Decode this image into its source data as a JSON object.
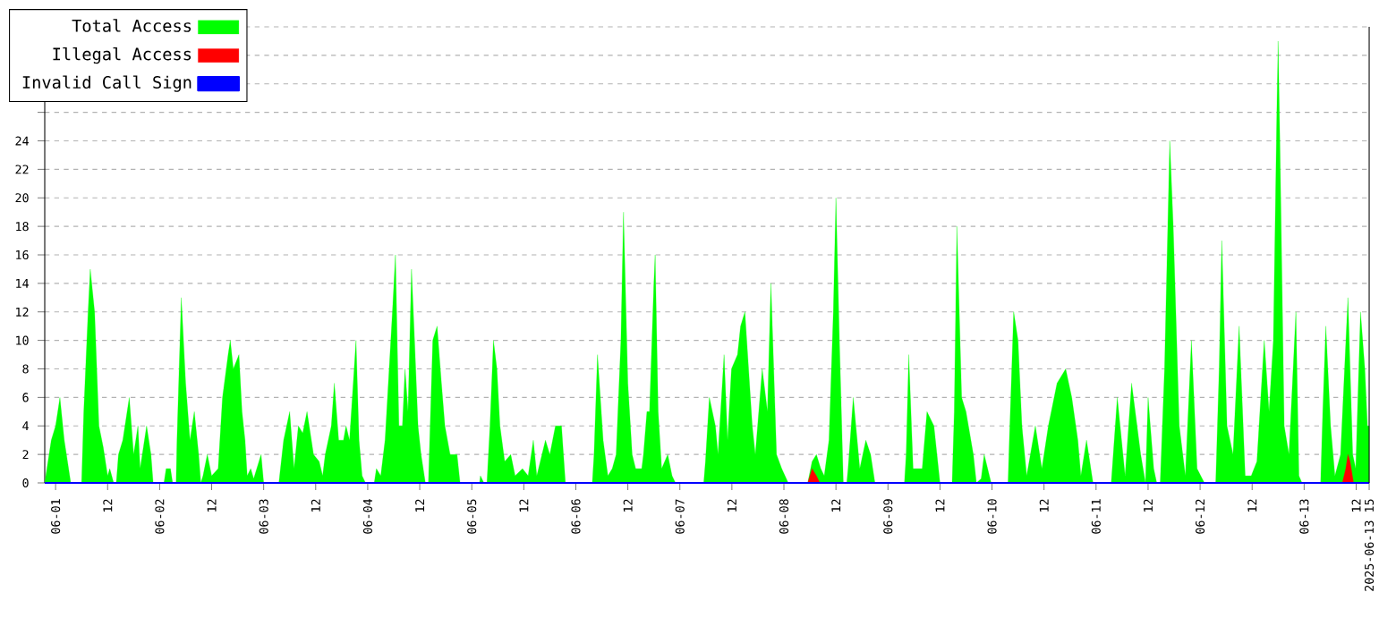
{
  "chart_data": {
    "type": "area",
    "xlim": [
      "2025-05-31T21:30",
      "2025-06-13T15:00"
    ],
    "ylim": [
      0,
      32
    ],
    "grid": "y",
    "legend": "top left",
    "xticks": [
      {
        "value": "2025-06-01T00:00",
        "label": "06-01"
      },
      {
        "value": "2025-06-01T12:00",
        "label": "12"
      },
      {
        "value": "2025-06-02T00:00",
        "label": "06-02"
      },
      {
        "value": "2025-06-02T12:00",
        "label": "12"
      },
      {
        "value": "2025-06-03T00:00",
        "label": "06-03"
      },
      {
        "value": "2025-06-03T12:00",
        "label": "12"
      },
      {
        "value": "2025-06-04T00:00",
        "label": "06-04"
      },
      {
        "value": "2025-06-04T12:00",
        "label": "12"
      },
      {
        "value": "2025-06-05T00:00",
        "label": "06-05"
      },
      {
        "value": "2025-06-05T12:00",
        "label": "12"
      },
      {
        "value": "2025-06-06T00:00",
        "label": "06-06"
      },
      {
        "value": "2025-06-06T12:00",
        "label": "12"
      },
      {
        "value": "2025-06-07T00:00",
        "label": "06-07"
      },
      {
        "value": "2025-06-07T12:00",
        "label": "12"
      },
      {
        "value": "2025-06-08T00:00",
        "label": "06-08"
      },
      {
        "value": "2025-06-08T12:00",
        "label": "12"
      },
      {
        "value": "2025-06-09T00:00",
        "label": "06-09"
      },
      {
        "value": "2025-06-09T12:00",
        "label": "12"
      },
      {
        "value": "2025-06-10T00:00",
        "label": "06-10"
      },
      {
        "value": "2025-06-10T12:00",
        "label": "12"
      },
      {
        "value": "2025-06-11T00:00",
        "label": "06-11"
      },
      {
        "value": "2025-06-11T12:00",
        "label": "12"
      },
      {
        "value": "2025-06-12T00:00",
        "label": "06-12"
      },
      {
        "value": "2025-06-12T12:00",
        "label": "12"
      },
      {
        "value": "2025-06-13T00:00",
        "label": "06-13"
      },
      {
        "value": "2025-06-13T12:00",
        "label": "12"
      },
      {
        "value": "2025-06-13T15:00",
        "label": "2025-06-13 15"
      }
    ],
    "yticks": [
      0,
      2,
      4,
      6,
      8,
      10,
      12,
      14,
      16,
      18,
      20,
      22,
      24,
      {
        "value": 26,
        "label": null
      },
      {
        "value": 28,
        "label": null
      },
      {
        "value": 30,
        "label": null
      },
      {
        "value": 32,
        "label": null
      }
    ],
    "series": [
      {
        "name": "Total Access",
        "color": "#00ff00",
        "x": [
          "2025-05-31T21:30",
          "2025-05-31T22:00",
          "2025-05-31T23:00",
          "2025-06-01T00:00",
          "2025-06-01T01:00",
          "2025-06-01T02:00",
          "2025-06-01T03:00",
          "2025-06-01T03:30",
          "2025-06-01T06:00",
          "2025-06-01T06:30",
          "2025-06-01T07:30",
          "2025-06-01T08:00",
          "2025-06-01T09:00",
          "2025-06-01T10:00",
          "2025-06-01T11:00",
          "2025-06-01T12:00",
          "2025-06-01T12:30",
          "2025-06-01T13:24",
          "2025-06-01T14:00",
          "2025-06-01T14:30",
          "2025-06-01T15:30",
          "2025-06-01T17:00",
          "2025-06-01T18:00",
          "2025-06-01T19:00",
          "2025-06-01T19:30",
          "2025-06-01T21:00",
          "2025-06-01T22:00",
          "2025-06-01T22:30",
          "2025-06-02T01:00",
          "2025-06-02T01:30",
          "2025-06-02T02:30",
          "2025-06-02T03:00",
          "2025-06-02T03:48",
          "2025-06-02T04:00",
          "2025-06-02T05:00",
          "2025-06-02T06:00",
          "2025-06-02T07:00",
          "2025-06-02T08:00",
          "2025-06-02T09:00",
          "2025-06-02T09:30",
          "2025-06-02T10:00",
          "2025-06-02T11:00",
          "2025-06-02T12:00",
          "2025-06-02T13:30",
          "2025-06-02T14:30",
          "2025-06-02T15:48",
          "2025-06-02T16:18",
          "2025-06-02T17:00",
          "2025-06-02T18:18",
          "2025-06-02T19:00",
          "2025-06-02T19:42",
          "2025-06-02T20:12",
          "2025-06-02T21:00",
          "2025-06-02T21:42",
          "2025-06-02T23:24",
          "2025-06-03T00:00",
          "2025-06-03T03:30",
          "2025-06-03T04:36",
          "2025-06-03T06:00",
          "2025-06-03T07:00",
          "2025-06-03T08:00",
          "2025-06-03T09:00",
          "2025-06-03T10:00",
          "2025-06-03T11:30",
          "2025-06-03T12:48",
          "2025-06-03T13:36",
          "2025-06-03T14:12",
          "2025-06-03T15:36",
          "2025-06-03T16:18",
          "2025-06-03T17:18",
          "2025-06-03T18:24",
          "2025-06-03T19:00",
          "2025-06-03T19:48",
          "2025-06-03T21:18",
          "2025-06-03T22:00",
          "2025-06-03T22:42",
          "2025-06-03T23:30",
          "2025-06-04T01:30",
          "2025-06-04T02:00",
          "2025-06-04T03:00",
          "2025-06-04T04:00",
          "2025-06-04T05:42",
          "2025-06-04T06:24",
          "2025-06-04T07:12",
          "2025-06-04T08:00",
          "2025-06-04T08:36",
          "2025-06-04T09:18",
          "2025-06-04T10:06",
          "2025-06-04T10:48",
          "2025-06-04T11:36",
          "2025-06-04T12:18",
          "2025-06-04T13:18",
          "2025-06-04T14:00",
          "2025-06-04T15:00",
          "2025-06-04T16:00",
          "2025-06-04T17:00",
          "2025-06-04T17:48",
          "2025-06-04T19:00",
          "2025-06-04T20:36",
          "2025-06-04T21:18",
          "2025-06-05T01:48",
          "2025-06-05T02:00",
          "2025-06-05T02:48",
          "2025-06-05T03:30",
          "2025-06-05T04:12",
          "2025-06-05T05:00",
          "2025-06-05T05:48",
          "2025-06-05T06:30",
          "2025-06-05T07:36",
          "2025-06-05T09:00",
          "2025-06-05T10:00",
          "2025-06-05T11:42",
          "2025-06-05T13:00",
          "2025-06-05T14:12",
          "2025-06-05T15:00",
          "2025-06-05T17:00",
          "2025-06-05T18:00",
          "2025-06-05T19:18",
          "2025-06-05T20:42",
          "2025-06-05T21:36",
          "2025-06-06T03:48",
          "2025-06-06T04:12",
          "2025-06-06T05:00",
          "2025-06-06T06:18",
          "2025-06-06T07:24",
          "2025-06-06T08:24",
          "2025-06-06T09:18",
          "2025-06-06T10:24",
          "2025-06-06T11:00",
          "2025-06-06T12:00",
          "2025-06-06T13:00",
          "2025-06-06T13:48",
          "2025-06-06T15:12",
          "2025-06-06T15:36",
          "2025-06-06T16:24",
          "2025-06-06T17:00",
          "2025-06-06T18:00",
          "2025-06-06T18:18",
          "2025-06-06T19:00",
          "2025-06-06T19:48",
          "2025-06-06T21:12",
          "2025-06-06T22:12",
          "2025-06-06T23:00",
          "2025-06-07T05:30",
          "2025-06-07T05:54",
          "2025-06-07T06:48",
          "2025-06-07T08:12",
          "2025-06-07T08:48",
          "2025-06-07T09:36",
          "2025-06-07T10:12",
          "2025-06-07T11:00",
          "2025-06-07T11:54",
          "2025-06-07T13:18",
          "2025-06-07T14:00",
          "2025-06-07T15:00",
          "2025-06-07T16:42",
          "2025-06-07T17:24",
          "2025-06-07T19:00",
          "2025-06-07T20:12",
          "2025-06-07T21:00",
          "2025-06-07T22:18",
          "2025-06-07T23:30",
          "2025-06-08T01:00",
          "2025-06-08T05:30",
          "2025-06-08T06:30",
          "2025-06-08T07:30",
          "2025-06-08T08:30",
          "2025-06-08T09:18",
          "2025-06-08T10:24",
          "2025-06-08T11:24",
          "2025-06-08T12:00",
          "2025-06-08T12:48",
          "2025-06-08T13:42",
          "2025-06-08T14:30",
          "2025-06-08T14:48",
          "2025-06-08T16:00",
          "2025-06-08T17:30",
          "2025-06-08T18:54",
          "2025-06-08T20:00",
          "2025-06-08T21:00",
          "2025-06-09T03:48",
          "2025-06-09T04:12",
          "2025-06-09T04:48",
          "2025-06-09T05:48",
          "2025-06-09T07:54",
          "2025-06-09T09:00",
          "2025-06-09T10:36",
          "2025-06-09T12:00",
          "2025-06-09T14:48",
          "2025-06-09T15:18",
          "2025-06-09T15:54",
          "2025-06-09T17:00",
          "2025-06-09T18:00",
          "2025-06-09T19:42",
          "2025-06-09T20:24",
          "2025-06-09T21:30",
          "2025-06-09T22:12",
          "2025-06-09T23:48",
          "2025-06-10T03:42",
          "2025-06-10T04:00",
          "2025-06-10T05:00",
          "2025-06-10T06:00",
          "2025-06-10T06:54",
          "2025-06-10T08:00",
          "2025-06-10T10:00",
          "2025-06-10T11:30",
          "2025-06-10T13:00",
          "2025-06-10T15:00",
          "2025-06-10T17:00",
          "2025-06-10T18:24",
          "2025-06-10T19:48",
          "2025-06-10T20:30",
          "2025-06-10T21:48",
          "2025-06-10T23:18",
          "2025-06-11T03:30",
          "2025-06-11T04:54",
          "2025-06-11T06:42",
          "2025-06-11T08:12",
          "2025-06-11T10:18",
          "2025-06-11T11:24",
          "2025-06-11T12:00",
          "2025-06-11T13:18",
          "2025-06-11T14:00",
          "2025-06-11T14:48",
          "2025-06-11T15:48",
          "2025-06-11T17:00",
          "2025-06-11T17:48",
          "2025-06-11T19:12",
          "2025-06-11T20:36",
          "2025-06-11T22:00",
          "2025-06-11T23:18",
          "2025-06-12T01:00",
          "2025-06-12T03:36",
          "2025-06-12T04:24",
          "2025-06-12T05:00",
          "2025-06-12T06:12",
          "2025-06-12T07:36",
          "2025-06-12T09:00",
          "2025-06-12T10:24",
          "2025-06-12T11:48",
          "2025-06-12T13:06",
          "2025-06-12T14:48",
          "2025-06-12T15:54",
          "2025-06-12T16:54",
          "2025-06-12T17:42",
          "2025-06-12T18:00",
          "2025-06-12T18:24",
          "2025-06-12T19:24",
          "2025-06-12T20:30",
          "2025-06-12T22:06",
          "2025-06-12T22:48",
          "2025-06-12T23:30",
          "2025-06-13T03:48",
          "2025-06-13T04:18",
          "2025-06-13T05:00",
          "2025-06-13T06:06",
          "2025-06-13T07:06",
          "2025-06-13T08:24",
          "2025-06-13T10:06",
          "2025-06-13T11:12",
          "2025-06-13T11:54",
          "2025-06-13T13:00",
          "2025-06-13T14:00",
          "2025-06-13T14:36",
          "2025-06-13T15:00"
        ],
        "values": [
          0,
          1,
          3,
          4,
          6,
          3,
          1,
          0,
          0,
          5,
          12,
          15,
          12,
          4,
          2.5,
          0.5,
          1,
          0,
          0,
          2,
          3,
          6,
          2,
          4,
          1,
          4,
          2,
          0,
          0,
          1,
          1,
          0,
          0,
          3,
          13,
          7,
          3,
          5,
          2,
          0,
          0.5,
          2,
          0.5,
          1,
          6,
          9,
          10,
          8,
          9,
          5,
          3,
          0.5,
          1,
          0.3,
          2,
          0,
          0,
          3,
          5,
          1,
          4,
          3.5,
          5,
          2,
          1.5,
          0.5,
          2,
          4,
          7,
          3,
          3,
          4,
          3,
          10,
          3,
          0.5,
          0,
          0,
          1,
          0.5,
          3,
          12,
          16,
          4,
          4,
          8,
          5,
          15,
          10,
          4,
          2,
          0,
          0,
          10,
          11,
          7,
          4,
          2,
          2,
          0,
          0,
          0.5,
          0,
          0,
          4,
          10,
          8,
          4,
          1.5,
          2,
          0.5,
          1,
          0.5,
          3,
          0.5,
          3,
          2,
          4,
          4,
          0,
          0,
          2,
          9,
          3,
          0.5,
          1,
          2,
          10,
          19,
          7,
          2,
          1,
          1,
          2,
          5,
          5,
          14,
          16,
          5,
          1,
          2,
          0.5,
          0,
          0,
          1.5,
          6,
          4,
          2,
          6,
          9,
          3,
          8,
          9,
          11,
          12,
          4,
          2,
          8,
          5,
          14,
          2,
          1,
          0,
          0,
          1.5,
          2,
          1,
          0.5,
          3,
          12,
          20,
          10,
          0,
          0,
          1,
          6,
          1,
          3,
          2,
          0,
          0,
          2,
          9,
          1,
          1,
          5,
          4,
          0,
          0,
          5,
          18,
          6,
          5,
          2,
          0,
          0.3,
          2,
          0,
          0,
          3,
          12,
          10,
          4,
          0.5,
          4,
          1,
          4,
          7,
          8,
          6,
          3,
          0.5,
          3,
          0,
          0,
          6,
          0.5,
          7,
          2,
          0,
          6,
          1,
          0,
          0,
          8,
          24,
          18,
          4,
          0.5,
          10,
          1,
          0,
          0,
          8,
          17,
          4,
          2,
          11,
          0.5,
          0.5,
          1.5,
          10,
          5,
          10,
          26,
          31,
          24,
          4,
          2,
          12,
          0.5,
          0,
          0,
          5,
          11,
          4,
          0.5,
          2,
          13,
          2,
          1,
          12,
          8,
          4,
          4
        ]
      },
      {
        "name": "Illegal Access",
        "color": "#ff0000",
        "x": [
          "2025-05-31T21:30",
          "2025-06-08T05:30",
          "2025-06-08T06:30",
          "2025-06-08T07:30",
          "2025-06-08T08:18",
          "2025-06-13T08:48",
          "2025-06-13T09:36",
          "2025-06-13T10:06",
          "2025-06-13T10:36",
          "2025-06-13T11:24",
          "2025-06-13T15:00"
        ],
        "values": [
          0,
          0,
          1,
          0.5,
          0,
          0,
          1,
          2,
          1.5,
          0,
          0
        ]
      },
      {
        "name": "Invalid Call Sign",
        "type": "line",
        "color": "#0000ff",
        "x": [
          "2025-05-31T21:30",
          "2025-06-13T15:00"
        ],
        "values": [
          0,
          0
        ]
      }
    ]
  }
}
